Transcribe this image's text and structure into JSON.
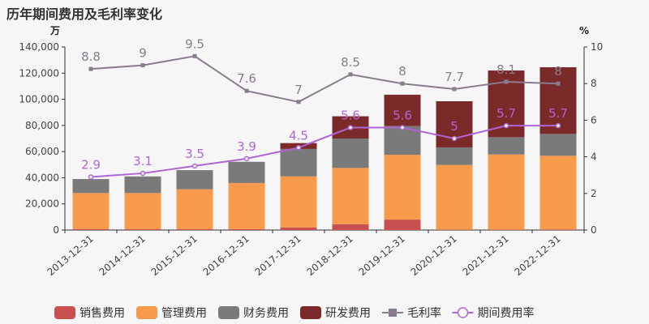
{
  "chart_data": {
    "type": "bar",
    "title": "历年期间费用及毛利率变化",
    "left_unit": "万",
    "right_unit": "%",
    "categories": [
      "2013-12-31",
      "2014-12-31",
      "2015-12-31",
      "2016-12-31",
      "2017-12-31",
      "2018-12-31",
      "2019-12-31",
      "2020-12-31",
      "2021-12-31",
      "2022-12-31"
    ],
    "left_axis": {
      "min": 0,
      "max": 140000,
      "ticks": [
        0,
        20000,
        40000,
        60000,
        80000,
        100000,
        120000,
        140000
      ],
      "tick_labels": [
        "0",
        "20,000",
        "40,000",
        "60,000",
        "80,000",
        "100,000",
        "120,000",
        "140,000"
      ]
    },
    "right_axis": {
      "min": 0,
      "max": 10,
      "ticks": [
        0,
        2,
        4,
        6,
        8,
        10
      ],
      "tick_labels": [
        "0",
        "2",
        "4",
        "6",
        "8",
        "10"
      ]
    },
    "bar_series": [
      {
        "name": "销售费用",
        "color": "#c9504f",
        "values": [
          800,
          600,
          600,
          700,
          2000,
          4500,
          8000,
          200,
          300,
          500
        ]
      },
      {
        "name": "管理费用",
        "color": "#f79a4b",
        "values": [
          27500,
          27700,
          30600,
          35300,
          39000,
          43000,
          49500,
          49600,
          57500,
          56300
        ]
      },
      {
        "name": "财务费用",
        "color": "#7a7a7a",
        "values": [
          10700,
          12700,
          14600,
          16200,
          21000,
          22500,
          22000,
          13400,
          13200,
          16700
        ]
      },
      {
        "name": "研发费用",
        "color": "#7b2a2a",
        "values": [
          0,
          0,
          0,
          0,
          4500,
          17000,
          24000,
          35300,
          51000,
          51000
        ]
      }
    ],
    "line_series": [
      {
        "name": "毛利率",
        "color": "#8a7c8e",
        "marker": "square",
        "values": [
          8.8,
          9,
          9.5,
          7.6,
          7,
          8.5,
          8,
          7.7,
          8.1,
          8
        ],
        "labels": [
          "8.8",
          "9",
          "9.5",
          "7.6",
          "7",
          "8.5",
          "8",
          "7.7",
          "8.1",
          "8"
        ]
      },
      {
        "name": "期间费用率",
        "color": "#b065d6",
        "marker": "circle",
        "values": [
          2.9,
          3.1,
          3.5,
          3.9,
          4.5,
          5.6,
          5.6,
          5,
          5.7,
          5.7
        ],
        "labels": [
          "2.9",
          "3.1",
          "3.5",
          "3.9",
          "4.5",
          "5.6",
          "5.6",
          "5",
          "5.7",
          "5.7"
        ]
      }
    ]
  }
}
